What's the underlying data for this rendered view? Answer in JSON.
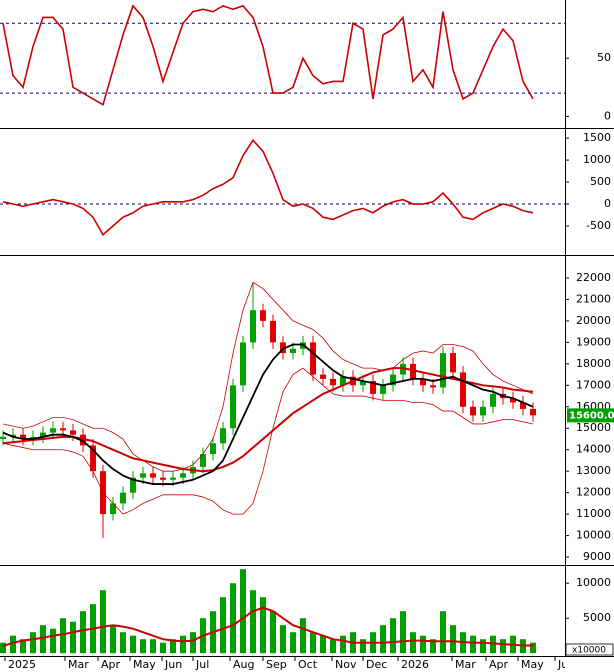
{
  "chart_data": [
    {
      "type": "line",
      "x": [
        0,
        1,
        2,
        3,
        4,
        5,
        6,
        7,
        8,
        9,
        10,
        11,
        12,
        13,
        14,
        15,
        16,
        17,
        18,
        19,
        20,
        21,
        22,
        23,
        24,
        25,
        26,
        27,
        28,
        29,
        30,
        31,
        32,
        33,
        34,
        35,
        36,
        37,
        38,
        39,
        40,
        41,
        42,
        43,
        44,
        45,
        46,
        47,
        48,
        49,
        50,
        51,
        52,
        53
      ],
      "xlim": [
        -0.3,
        56.2
      ],
      "ylim": [
        -10,
        100
      ],
      "yticks": [
        0,
        50
      ],
      "levels": [
        20,
        80
      ],
      "level_color": "#000080",
      "series": [
        {
          "color": "#cc0000",
          "width": 1.6,
          "values": [
            80,
            35,
            25,
            60,
            85,
            85,
            75,
            25,
            20,
            15,
            10,
            40,
            70,
            95,
            85,
            60,
            30,
            55,
            80,
            90,
            92,
            90,
            95,
            92,
            95,
            85,
            60,
            20,
            20,
            25,
            50,
            35,
            28,
            30,
            30,
            80,
            75,
            15,
            70,
            75,
            85,
            30,
            40,
            25,
            90,
            40,
            15,
            20,
            40,
            60,
            75,
            65,
            30,
            15
          ]
        }
      ]
    },
    {
      "type": "line",
      "x": [
        0,
        1,
        2,
        3,
        4,
        5,
        6,
        7,
        8,
        9,
        10,
        11,
        12,
        13,
        14,
        15,
        16,
        17,
        18,
        19,
        20,
        21,
        22,
        23,
        24,
        25,
        26,
        27,
        28,
        29,
        30,
        31,
        32,
        33,
        34,
        35,
        36,
        37,
        38,
        39,
        40,
        41,
        42,
        43,
        44,
        45,
        46,
        47,
        48,
        49,
        50,
        51,
        52,
        53
      ],
      "xlim": [
        -0.3,
        56.2
      ],
      "ylim": [
        -1160,
        1730
      ],
      "yticks": [
        -500,
        0,
        500,
        1000,
        1500
      ],
      "levels": [
        0
      ],
      "level_color": "#000080",
      "series": [
        {
          "color": "#cc0000",
          "width": 1.6,
          "values": [
            50,
            0,
            -50,
            0,
            50,
            100,
            50,
            0,
            -100,
            -300,
            -700,
            -500,
            -300,
            -200,
            -50,
            0,
            50,
            50,
            50,
            100,
            200,
            350,
            450,
            600,
            1100,
            1450,
            1200,
            700,
            100,
            -50,
            0,
            -100,
            -300,
            -350,
            -250,
            -150,
            -100,
            -200,
            -50,
            50,
            100,
            0,
            0,
            50,
            250,
            0,
            -300,
            -350,
            -200,
            -100,
            0,
            -50,
            -150,
            -200
          ]
        }
      ]
    },
    {
      "type": "candlestick",
      "x": [
        0,
        1,
        2,
        3,
        4,
        5,
        6,
        7,
        8,
        9,
        10,
        11,
        12,
        13,
        14,
        15,
        16,
        17,
        18,
        19,
        20,
        21,
        22,
        23,
        24,
        25,
        26,
        27,
        28,
        29,
        30,
        31,
        32,
        33,
        34,
        35,
        36,
        37,
        38,
        39,
        40,
        41,
        42,
        43,
        44,
        45,
        46,
        47,
        48,
        49,
        50,
        51,
        52,
        53
      ],
      "xlim": [
        -0.3,
        56.2
      ],
      "ylim": [
        8630,
        23070
      ],
      "yticks": [
        9000,
        10000,
        11000,
        12000,
        13000,
        14000,
        15000,
        16000,
        17000,
        18000,
        19000,
        20000,
        21000,
        22000
      ],
      "up_color": "#00a000",
      "down_color": "#e00000",
      "open": [
        14500,
        14600,
        14700,
        14500,
        14600,
        14800,
        15000,
        14900,
        14700,
        14200,
        13000,
        11000,
        11500,
        12000,
        12700,
        12900,
        12700,
        12600,
        12700,
        12900,
        13200,
        13800,
        14300,
        15000,
        17000,
        19000,
        20500,
        20000,
        19000,
        18500,
        18700,
        19000,
        17500,
        17300,
        17000,
        17400,
        17000,
        17200,
        16600,
        17000,
        17500,
        18000,
        17300,
        17000,
        16900,
        18500,
        17600,
        16000,
        15600,
        16000,
        16600,
        16400,
        16200,
        15900
      ],
      "high": [
        14900,
        15000,
        15000,
        14900,
        15100,
        15300,
        15300,
        15200,
        15000,
        14500,
        13300,
        11800,
        12300,
        13000,
        13200,
        13200,
        13000,
        13000,
        13200,
        13500,
        14100,
        14600,
        15300,
        17300,
        19300,
        21800,
        20800,
        20300,
        19300,
        19000,
        19300,
        19300,
        17800,
        17600,
        17700,
        17700,
        17500,
        17500,
        17300,
        17800,
        18300,
        18300,
        17600,
        17300,
        18800,
        18800,
        17900,
        16300,
        16300,
        16900,
        16900,
        16700,
        16500,
        16200
      ],
      "low": [
        14200,
        14300,
        14200,
        14200,
        14300,
        14500,
        14600,
        14400,
        13900,
        12700,
        9900,
        10700,
        11200,
        11700,
        12400,
        12400,
        12300,
        12300,
        12400,
        12600,
        12900,
        13500,
        14000,
        14700,
        16700,
        18700,
        19700,
        18700,
        18200,
        18200,
        18400,
        17200,
        17000,
        16700,
        16700,
        16700,
        16700,
        16300,
        16300,
        16700,
        17200,
        17000,
        16700,
        16600,
        16600,
        17300,
        15700,
        15300,
        15300,
        15700,
        16100,
        15900,
        15600,
        15300
      ],
      "close": [
        14600,
        14700,
        14500,
        14600,
        14800,
        15000,
        14900,
        14700,
        14200,
        13000,
        11000,
        11500,
        12000,
        12700,
        12900,
        12700,
        12600,
        12700,
        12900,
        13200,
        13800,
        14300,
        15000,
        17000,
        19000,
        20500,
        20000,
        19000,
        18500,
        18700,
        19000,
        17500,
        17300,
        17000,
        17400,
        17000,
        17200,
        16600,
        17000,
        17500,
        18000,
        17300,
        17000,
        16900,
        18500,
        17600,
        16000,
        15600,
        16000,
        16600,
        16400,
        16200,
        15900,
        15600
      ],
      "last_price": {
        "value": 15600,
        "label": "15600.00"
      },
      "last_price_color": "#00a000",
      "series": [
        {
          "color": "#cc0000",
          "width": 0.8,
          "values": [
            15200,
            15100,
            15000,
            15100,
            15300,
            15500,
            15500,
            15400,
            15200,
            15000,
            15000,
            14800,
            14500,
            13800,
            13500,
            13200,
            13000,
            13000,
            13100,
            13300,
            13800,
            14500,
            16000,
            18500,
            20500,
            21800,
            21500,
            21000,
            20500,
            20000,
            19800,
            19600,
            19200,
            18600,
            18200,
            18000,
            17800,
            17800,
            17700,
            17800,
            18200,
            18500,
            18600,
            18500,
            18900,
            18900,
            18800,
            18600,
            18000,
            17500,
            17200,
            17000,
            16800,
            16600
          ]
        },
        {
          "color": "#cc0000",
          "width": 0.8,
          "values": [
            14300,
            14200,
            14100,
            14000,
            14000,
            14000,
            14000,
            13900,
            13700,
            13000,
            12000,
            11500,
            11000,
            11200,
            11500,
            11700,
            11900,
            11900,
            11900,
            11900,
            11800,
            11600,
            11200,
            11000,
            11000,
            11500,
            13000,
            15000,
            16700,
            17500,
            17800,
            17400,
            17000,
            16600,
            16500,
            16500,
            16500,
            16400,
            16300,
            16300,
            16300,
            16200,
            16200,
            16100,
            15800,
            15800,
            15500,
            15200,
            15200,
            15300,
            15400,
            15400,
            15300,
            15200
          ]
        },
        {
          "color": "#cc0000",
          "width": 2,
          "values": [
            14300,
            14350,
            14400,
            14450,
            14500,
            14550,
            14600,
            14600,
            14500,
            14400,
            14200,
            14000,
            13800,
            13600,
            13500,
            13400,
            13300,
            13200,
            13100,
            13050,
            13000,
            13050,
            13200,
            13400,
            13700,
            14100,
            14500,
            14900,
            15300,
            15700,
            16000,
            16300,
            16600,
            16800,
            17000,
            17200,
            17400,
            17600,
            17700,
            17800,
            17800,
            17700,
            17600,
            17500,
            17400,
            17300,
            17200,
            17100,
            17000,
            16950,
            16900,
            16800,
            16750,
            16700
          ]
        },
        {
          "color": "#000000",
          "width": 1.8,
          "values": [
            14800,
            14600,
            14500,
            14500,
            14600,
            14700,
            14700,
            14600,
            14400,
            14000,
            13500,
            13100,
            12800,
            12600,
            12500,
            12400,
            12400,
            12400,
            12500,
            12600,
            12800,
            13000,
            13500,
            14500,
            15500,
            16500,
            17500,
            18200,
            18700,
            18900,
            18900,
            18500,
            18100,
            17700,
            17400,
            17300,
            17200,
            17100,
            17000,
            17100,
            17200,
            17300,
            17300,
            17200,
            17300,
            17400,
            17200,
            17000,
            16800,
            16700,
            16500,
            16400,
            16200,
            16000
          ]
        }
      ]
    },
    {
      "type": "bar",
      "x": [
        0,
        1,
        2,
        3,
        4,
        5,
        6,
        7,
        8,
        9,
        10,
        11,
        12,
        13,
        14,
        15,
        16,
        17,
        18,
        19,
        20,
        21,
        22,
        23,
        24,
        25,
        26,
        27,
        28,
        29,
        30,
        31,
        32,
        33,
        34,
        35,
        36,
        37,
        38,
        39,
        40,
        41,
        42,
        43,
        44,
        45,
        46,
        47,
        48,
        49,
        50,
        51,
        52,
        53
      ],
      "xlim": [
        -0.3,
        56.2
      ],
      "ylim": [
        -400,
        12600
      ],
      "yticks": [
        5000,
        10000
      ],
      "unit_label": "x10000",
      "color": "#00a000",
      "values": [
        1500,
        2500,
        2000,
        3000,
        4000,
        3500,
        5000,
        4500,
        6000,
        7000,
        9000,
        4000,
        3000,
        2500,
        2000,
        2000,
        1500,
        2000,
        2500,
        3000,
        5000,
        6000,
        8000,
        10000,
        12000,
        9000,
        8000,
        6000,
        4000,
        3000,
        5000,
        3000,
        2500,
        2000,
        2500,
        3000,
        2000,
        3000,
        4000,
        5000,
        6000,
        3000,
        2500,
        2000,
        6000,
        4000,
        3000,
        2500,
        2000,
        2500,
        2000,
        2500,
        2000,
        1500
      ],
      "series": [
        {
          "color": "#cc0000",
          "width": 2,
          "values": [
            1000,
            1500,
            1800,
            2000,
            2200,
            2500,
            2700,
            3000,
            3300,
            3500,
            3800,
            4000,
            3800,
            3500,
            3000,
            2500,
            2000,
            1800,
            1700,
            1800,
            2500,
            3000,
            3500,
            4000,
            5000,
            6000,
            6500,
            6000,
            5000,
            4000,
            3500,
            3000,
            2500,
            2000,
            1800,
            1500,
            1500,
            1500,
            1500,
            1600,
            1700,
            1800,
            1800,
            1700,
            1700,
            1700,
            1600,
            1500,
            1500,
            1400,
            1300,
            1200,
            1100,
            1100
          ]
        }
      ],
      "xticks": [
        {
          "value": 0.2,
          "label": "2025"
        },
        {
          "value": 6.2,
          "label": "Mar"
        },
        {
          "value": 9.5,
          "label": "Apr"
        },
        {
          "value": 12.7,
          "label": "May"
        },
        {
          "value": 15.9,
          "label": "Jun"
        },
        {
          "value": 19,
          "label": "Jul"
        },
        {
          "value": 22.7,
          "label": "Aug"
        },
        {
          "value": 26,
          "label": "Sep"
        },
        {
          "value": 29.2,
          "label": "Oct"
        },
        {
          "value": 32.9,
          "label": "Nov"
        },
        {
          "value": 36,
          "label": "Dec"
        },
        {
          "value": 39.5,
          "label": "2026"
        },
        {
          "value": 44.9,
          "label": "Mar"
        },
        {
          "value": 48.3,
          "label": "Apr"
        },
        {
          "value": 51.5,
          "label": "May"
        },
        {
          "value": 55.2,
          "label": "Jun"
        }
      ]
    }
  ]
}
